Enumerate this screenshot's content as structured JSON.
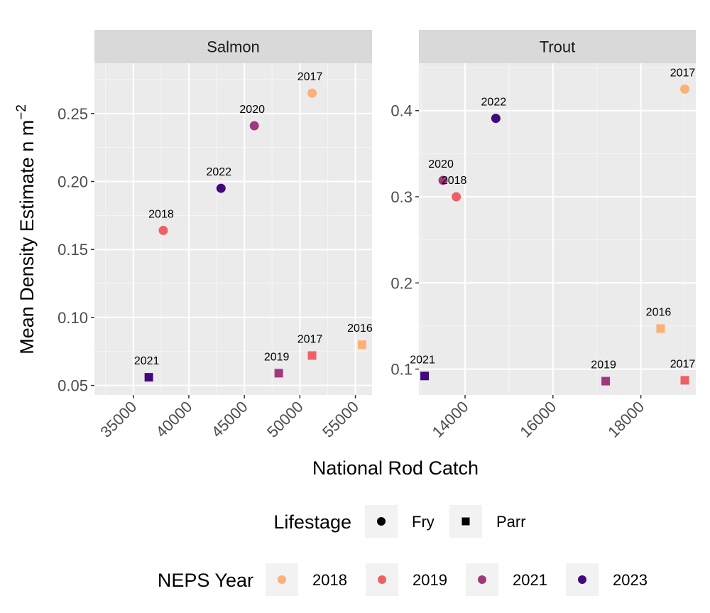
{
  "chart_data": {
    "type": "scatter",
    "xlabel": "National Rod Catch",
    "ylabel": "Mean Density Estimate n m",
    "ylabel_superscript": "−2",
    "panels": [
      {
        "name": "Salmon",
        "xlim": [
          31500,
          56500
        ],
        "ylim": [
          0.043,
          0.287
        ],
        "xticks": [
          35000,
          40000,
          45000,
          50000,
          55000
        ],
        "xtick_labels": [
          "35000",
          "40000",
          "45000",
          "50000",
          "55000"
        ],
        "yticks": [
          0.05,
          0.1,
          0.15,
          0.2,
          0.25
        ],
        "ytick_labels": [
          "0.05",
          "0.10",
          "0.15",
          "0.20",
          "0.25"
        ],
        "points": [
          {
            "x": 37700,
            "y": 0.164,
            "lifestage": "Fry",
            "neps_year": "2019",
            "label": "2018"
          },
          {
            "x": 42900,
            "y": 0.195,
            "lifestage": "Fry",
            "neps_year": "2023",
            "label": "2022"
          },
          {
            "x": 45900,
            "y": 0.241,
            "lifestage": "Fry",
            "neps_year": "2021",
            "label": "2020"
          },
          {
            "x": 51100,
            "y": 0.265,
            "lifestage": "Fry",
            "neps_year": "2018",
            "label": "2017"
          },
          {
            "x": 36400,
            "y": 0.056,
            "lifestage": "Parr",
            "neps_year": "2023",
            "label": "2021"
          },
          {
            "x": 48100,
            "y": 0.059,
            "lifestage": "Parr",
            "neps_year": "2021",
            "label": "2019"
          },
          {
            "x": 51100,
            "y": 0.072,
            "lifestage": "Parr",
            "neps_year": "2019",
            "label": "2017"
          },
          {
            "x": 55600,
            "y": 0.08,
            "lifestage": "Parr",
            "neps_year": "2018",
            "label": "2016"
          }
        ]
      },
      {
        "name": "Trout",
        "xlim": [
          12950,
          19250
        ],
        "ylim": [
          0.07,
          0.455
        ],
        "xticks": [
          14000,
          16000,
          18000
        ],
        "xtick_labels": [
          "14000",
          "16000",
          "18000"
        ],
        "yticks": [
          0.1,
          0.2,
          0.3,
          0.4
        ],
        "ytick_labels": [
          "0.1",
          "0.2",
          "0.3",
          "0.4"
        ],
        "points": [
          {
            "x": 13500,
            "y": 0.319,
            "lifestage": "Fry",
            "neps_year": "2021",
            "label": "2020"
          },
          {
            "x": 13800,
            "y": 0.3,
            "lifestage": "Fry",
            "neps_year": "2019",
            "label": "2018"
          },
          {
            "x": 14700,
            "y": 0.391,
            "lifestage": "Fry",
            "neps_year": "2023",
            "label": "2022"
          },
          {
            "x": 19000,
            "y": 0.425,
            "lifestage": "Fry",
            "neps_year": "2018",
            "label": "2017"
          },
          {
            "x": 13080,
            "y": 0.092,
            "lifestage": "Parr",
            "neps_year": "2023",
            "label": "2021"
          },
          {
            "x": 17200,
            "y": 0.086,
            "lifestage": "Parr",
            "neps_year": "2021",
            "label": "2019"
          },
          {
            "x": 18450,
            "y": 0.147,
            "lifestage": "Parr",
            "neps_year": "2018",
            "label": "2016"
          },
          {
            "x": 19000,
            "y": 0.087,
            "lifestage": "Parr",
            "neps_year": "2019",
            "label": "2017"
          }
        ]
      }
    ],
    "legends": {
      "lifestage": {
        "title": "Lifestage",
        "items": [
          {
            "label": "Fry",
            "shape": "circle"
          },
          {
            "label": "Parr",
            "shape": "square"
          }
        ]
      },
      "neps_year": {
        "title": "NEPS Year",
        "items": [
          {
            "label": "2018",
            "color": "#FCB074"
          },
          {
            "label": "2019",
            "color": "#EF6065"
          },
          {
            "label": "2021",
            "color": "#A0397C"
          },
          {
            "label": "2023",
            "color": "#42097D"
          }
        ]
      }
    },
    "legend_position": "bottom"
  }
}
